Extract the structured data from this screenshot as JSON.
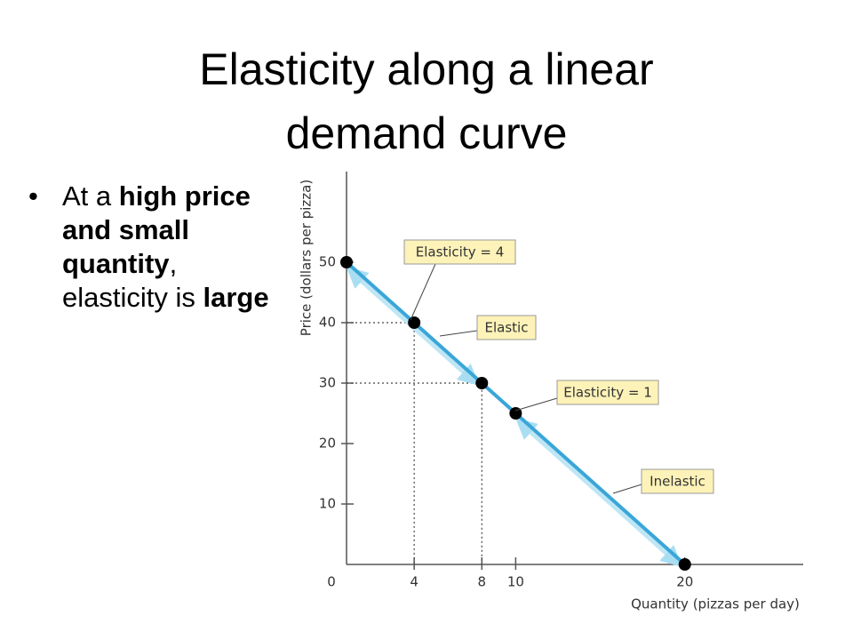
{
  "slide": {
    "title_lines": [
      "Elasticity along a linear",
      "demand curve"
    ],
    "bullet": [
      {
        "text": "At a ",
        "bold": false
      },
      {
        "text": "high price and small quantity",
        "bold": true
      },
      {
        "text": ", elasticity is ",
        "bold": false
      },
      {
        "text": "large",
        "bold": true
      }
    ]
  },
  "chart_data": {
    "type": "line",
    "x_label": "Quantity (pizzas per day)",
    "y_label": "Price (dollars per pizza)",
    "x": [
      0,
      4,
      8,
      10,
      20
    ],
    "values": [
      50,
      40,
      30,
      25,
      0
    ],
    "color": "#3aa6d8",
    "xlim": [
      0,
      27
    ],
    "ylim": [
      0,
      65
    ],
    "xticks": [
      0,
      4,
      8,
      10,
      20
    ],
    "yticks": [
      10,
      20,
      30,
      40,
      50
    ],
    "annotations": [
      "Elasticity = 4",
      "Elastic",
      "Elasticity = 1",
      "Inelastic"
    ]
  }
}
